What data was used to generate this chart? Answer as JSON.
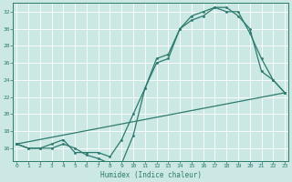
{
  "xlabel": "Humidex (Indice chaleur)",
  "bg_color": "#cce8e4",
  "grid_color": "#ffffff",
  "line_color": "#2d7a6e",
  "x_max": 23,
  "ylim": [
    14.5,
    33.0
  ],
  "yticks": [
    16,
    18,
    20,
    22,
    24,
    26,
    28,
    30,
    32
  ],
  "xlim": [
    -0.3,
    23.3
  ],
  "line1_x": [
    0,
    1,
    2,
    3,
    4,
    5,
    6,
    7,
    8,
    9,
    10,
    11,
    12,
    13,
    14,
    15,
    16,
    17,
    18,
    19,
    20,
    21,
    22,
    23
  ],
  "line1_y": [
    16.5,
    16.0,
    16.0,
    16.0,
    16.5,
    16.0,
    15.2,
    14.8,
    14.2,
    14.2,
    17.5,
    23.0,
    26.0,
    26.5,
    30.0,
    31.0,
    31.5,
    32.5,
    32.5,
    31.5,
    30.0,
    25.0,
    24.0,
    22.5
  ],
  "line2_x": [
    0,
    1,
    2,
    3,
    4,
    5,
    6,
    7,
    8,
    9,
    10,
    11,
    12,
    13,
    14,
    15,
    16,
    17,
    18,
    19,
    20,
    21,
    22,
    23
  ],
  "line2_y": [
    16.5,
    16.0,
    16.0,
    16.5,
    17.0,
    15.5,
    15.5,
    15.5,
    15.0,
    17.0,
    20.0,
    23.0,
    26.5,
    27.0,
    30.0,
    31.5,
    32.0,
    32.5,
    32.0,
    32.0,
    29.5,
    26.5,
    24.0,
    22.5
  ],
  "line3_x": [
    0,
    23
  ],
  "line3_y": [
    16.5,
    22.5
  ],
  "marker_size": 2.0,
  "line_width": 0.9,
  "tick_fontsize": 4.5,
  "xlabel_fontsize": 5.5,
  "figsize": [
    3.2,
    2.0
  ],
  "dpi": 100
}
